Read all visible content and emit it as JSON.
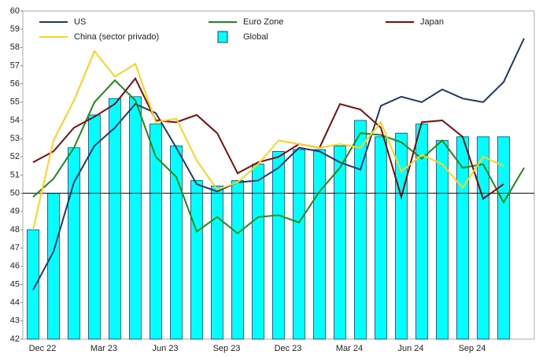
{
  "chart_data": {
    "type": "bar-line",
    "categories": [
      "Dec 22",
      null,
      null,
      "Mar 23",
      null,
      null,
      "Jun 23",
      null,
      null,
      "Sep 23",
      null,
      null,
      "Dec 23",
      null,
      null,
      "Mar 24",
      null,
      null,
      "Jun 24",
      null,
      null,
      "Sep 24",
      null,
      null,
      null
    ],
    "series": [
      {
        "name": "US",
        "kind": "line",
        "color": "#1f3864",
        "values": [
          44.7,
          46.8,
          50.6,
          52.6,
          53.6,
          54.9,
          54.4,
          52.5,
          50.5,
          50.1,
          50.6,
          50.7,
          51.4,
          52.5,
          52.3,
          51.7,
          51.3,
          54.8,
          55.3,
          55.0,
          55.7,
          55.2,
          55.0,
          56.1,
          58.5
        ]
      },
      {
        "name": "Euro Zone",
        "kind": "line",
        "color": "#1a8a1a",
        "values": [
          49.8,
          50.8,
          52.5,
          55.0,
          56.2,
          55.1,
          52.0,
          50.9,
          47.9,
          48.7,
          47.8,
          48.7,
          48.8,
          48.4,
          50.1,
          51.4,
          53.3,
          53.2,
          52.8,
          51.9,
          52.9,
          51.4,
          51.6,
          49.5,
          51.4
        ]
      },
      {
        "name": "Japan",
        "kind": "line",
        "color": "#7b0c0c",
        "values": [
          51.7,
          52.3,
          53.6,
          54.2,
          54.9,
          56.3,
          54.0,
          53.9,
          54.3,
          53.3,
          51.1,
          51.7,
          52.0,
          52.7,
          52.5,
          54.9,
          54.6,
          53.6,
          49.8,
          53.9,
          54.0,
          53.1,
          49.7,
          50.5,
          null
        ]
      },
      {
        "name": "China (sector privado)",
        "kind": "line",
        "color": "#ffd21f",
        "values": [
          48.0,
          52.9,
          55.1,
          57.8,
          56.4,
          57.1,
          53.9,
          54.1,
          51.8,
          50.2,
          50.6,
          51.6,
          52.9,
          52.7,
          52.5,
          52.7,
          52.5,
          53.9,
          51.2,
          52.1,
          51.6,
          50.3,
          52.0,
          51.5,
          null
        ]
      },
      {
        "name": "Global",
        "kind": "bar",
        "color": "#00ffff",
        "values": [
          48.0,
          50.0,
          52.5,
          54.3,
          55.2,
          55.3,
          53.8,
          52.6,
          50.7,
          50.4,
          50.7,
          51.6,
          52.3,
          52.4,
          52.4,
          52.6,
          54.0,
          53.1,
          53.3,
          53.8,
          52.9,
          53.1,
          53.1,
          53.1,
          null
        ]
      }
    ],
    "ylim": [
      42,
      60
    ],
    "yticks": [
      42,
      43,
      44,
      45,
      46,
      47,
      48,
      49,
      50,
      51,
      52,
      53,
      54,
      55,
      56,
      57,
      58,
      59,
      60
    ],
    "refline": 50,
    "grid": false
  }
}
